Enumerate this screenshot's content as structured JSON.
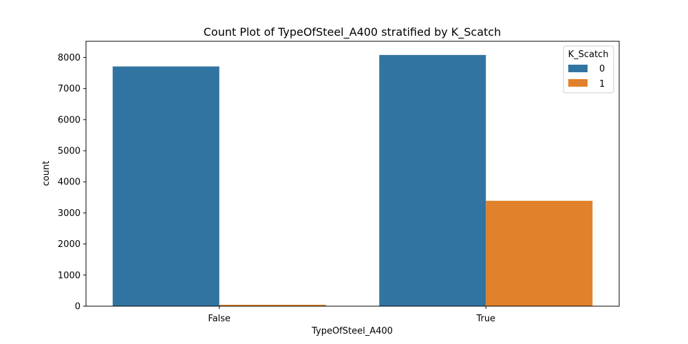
{
  "colors": {
    "series_0": "#3274a1",
    "series_1": "#e1812c",
    "axis": "#000000",
    "background": "#ffffff"
  },
  "chart_data": {
    "type": "bar",
    "title": "Count Plot of TypeOfSteel_A400 stratified by K_Scatch",
    "xlabel": "TypeOfSteel_A400",
    "ylabel": "count",
    "categories": [
      "False",
      "True"
    ],
    "series": [
      {
        "name": "0",
        "values": [
          7710,
          8080
        ]
      },
      {
        "name": "1",
        "values": [
          45,
          3390
        ]
      }
    ],
    "ylim": [
      0,
      8520
    ],
    "yticks": [
      0,
      1000,
      2000,
      3000,
      4000,
      5000,
      6000,
      7000,
      8000
    ],
    "grid": false,
    "legend": {
      "title": "K_Scatch",
      "placement": "top-right"
    }
  }
}
